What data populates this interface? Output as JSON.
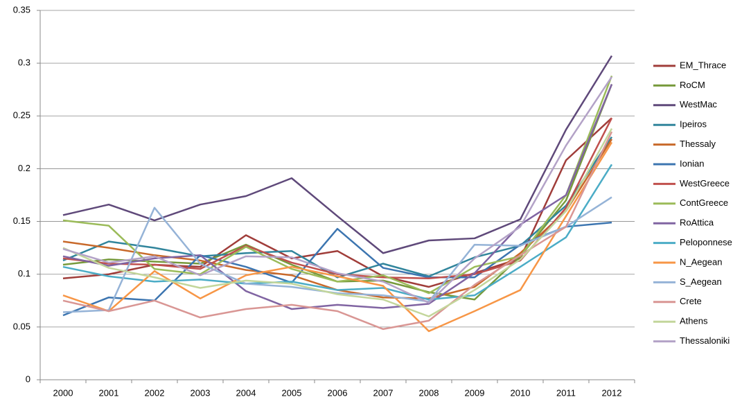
{
  "chart_data": {
    "type": "line",
    "categories": [
      "2000",
      "2001",
      "2002",
      "2003",
      "2004",
      "2005",
      "2006",
      "2007",
      "2008",
      "2009",
      "2010",
      "2011",
      "2012"
    ],
    "ylim": [
      0,
      0.35
    ],
    "yticks": [
      0,
      0.05,
      0.1,
      0.15,
      0.2,
      0.25,
      0.3,
      0.35
    ],
    "grid": true,
    "legend": "right",
    "series": [
      {
        "name": "EM_Thrace",
        "color": "#a03d3a",
        "values": [
          0.096,
          0.1,
          0.109,
          0.107,
          0.137,
          0.115,
          0.122,
          0.098,
          0.088,
          0.101,
          0.115,
          0.208,
          0.248
        ]
      },
      {
        "name": "RoCM",
        "color": "#779a3c",
        "values": [
          0.109,
          0.114,
          0.112,
          0.11,
          0.128,
          0.109,
          0.093,
          0.094,
          0.083,
          0.076,
          0.117,
          0.17,
          0.28
        ]
      },
      {
        "name": "WestMac",
        "color": "#5f497a",
        "values": [
          0.156,
          0.166,
          0.151,
          0.166,
          0.174,
          0.191,
          0.155,
          0.12,
          0.132,
          0.134,
          0.152,
          0.237,
          0.307
        ]
      },
      {
        "name": "Ipeiros",
        "color": "#31859c",
        "values": [
          0.113,
          0.131,
          0.125,
          0.117,
          0.12,
          0.122,
          0.097,
          0.11,
          0.098,
          0.116,
          0.127,
          0.165,
          0.23
        ]
      },
      {
        "name": "Thessaly",
        "color": "#c8692a",
        "values": [
          0.131,
          0.125,
          0.118,
          0.113,
          0.104,
          0.099,
          0.085,
          0.078,
          0.077,
          0.088,
          0.12,
          0.16,
          0.228
        ]
      },
      {
        "name": "Ionian",
        "color": "#3c75b0",
        "values": [
          0.061,
          0.078,
          0.075,
          0.118,
          0.107,
          0.092,
          0.143,
          0.106,
          0.097,
          0.097,
          0.128,
          0.145,
          0.149
        ]
      },
      {
        "name": "WestGreece",
        "color": "#c0504d",
        "values": [
          0.115,
          0.11,
          0.109,
          0.105,
          0.127,
          0.111,
          0.1,
          0.097,
          0.096,
          0.1,
          0.113,
          0.163,
          0.248
        ]
      },
      {
        "name": "ContGreece",
        "color": "#9bbb59",
        "values": [
          0.151,
          0.146,
          0.105,
          0.1,
          0.126,
          0.105,
          0.093,
          0.099,
          0.082,
          0.107,
          0.117,
          0.175,
          0.288
        ]
      },
      {
        "name": "RoAttica",
        "color": "#8064a2",
        "values": [
          0.117,
          0.108,
          0.115,
          0.118,
          0.084,
          0.067,
          0.071,
          0.068,
          0.072,
          0.101,
          0.147,
          0.175,
          0.28
        ]
      },
      {
        "name": "Peloponnese",
        "color": "#4bacc6",
        "values": [
          0.107,
          0.098,
          0.093,
          0.095,
          0.091,
          0.093,
          0.085,
          0.087,
          0.076,
          0.08,
          0.107,
          0.135,
          0.204
        ]
      },
      {
        "name": "N_Aegean",
        "color": "#f79646",
        "values": [
          0.08,
          0.065,
          0.103,
          0.077,
          0.099,
          0.107,
          0.098,
          0.089,
          0.046,
          0.065,
          0.085,
          0.155,
          0.225
        ]
      },
      {
        "name": "S_Aegean",
        "color": "#95b3d7",
        "values": [
          0.064,
          0.066,
          0.163,
          0.11,
          0.091,
          0.088,
          0.082,
          0.08,
          0.074,
          0.128,
          0.127,
          0.145,
          0.173
        ]
      },
      {
        "name": "Crete",
        "color": "#d99694",
        "values": [
          0.075,
          0.065,
          0.075,
          0.059,
          0.067,
          0.071,
          0.065,
          0.048,
          0.056,
          0.09,
          0.118,
          0.145,
          0.235
        ]
      },
      {
        "name": "Athens",
        "color": "#c3d69b",
        "values": [
          0.125,
          0.106,
          0.097,
          0.087,
          0.094,
          0.091,
          0.081,
          0.076,
          0.06,
          0.085,
          0.114,
          0.16,
          0.238
        ]
      },
      {
        "name": "Thessaloniki",
        "color": "#b3a2c7",
        "values": [
          0.124,
          0.111,
          0.117,
          0.099,
          0.117,
          0.116,
          0.101,
          0.093,
          0.073,
          0.115,
          0.145,
          0.222,
          0.287
        ]
      }
    ]
  }
}
